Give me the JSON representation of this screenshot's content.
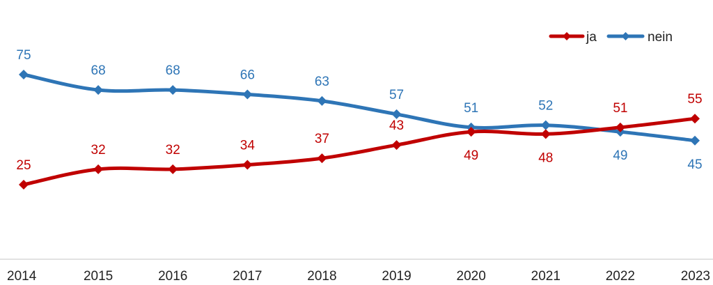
{
  "chart_data": {
    "type": "line",
    "categories": [
      "2014",
      "2015",
      "2016",
      "2017",
      "2018",
      "2019",
      "2020",
      "2021",
      "2022",
      "2023"
    ],
    "series": [
      {
        "name": "ja",
        "color": "#c00000",
        "values": [
          25,
          32,
          32,
          34,
          37,
          43,
          49,
          48,
          51,
          55
        ],
        "label_pos": [
          "above",
          "above",
          "above",
          "above",
          "above",
          "above",
          "below",
          "below",
          "above",
          "above"
        ]
      },
      {
        "name": "nein",
        "color": "#2e75b6",
        "values": [
          75,
          68,
          68,
          66,
          63,
          57,
          51,
          52,
          49,
          45
        ],
        "label_pos": [
          "above",
          "above",
          "above",
          "above",
          "above",
          "above",
          "above",
          "above",
          "below",
          "below"
        ]
      }
    ],
    "legend_position": "top-right",
    "grid": false,
    "xlabel": "",
    "ylabel": ""
  }
}
